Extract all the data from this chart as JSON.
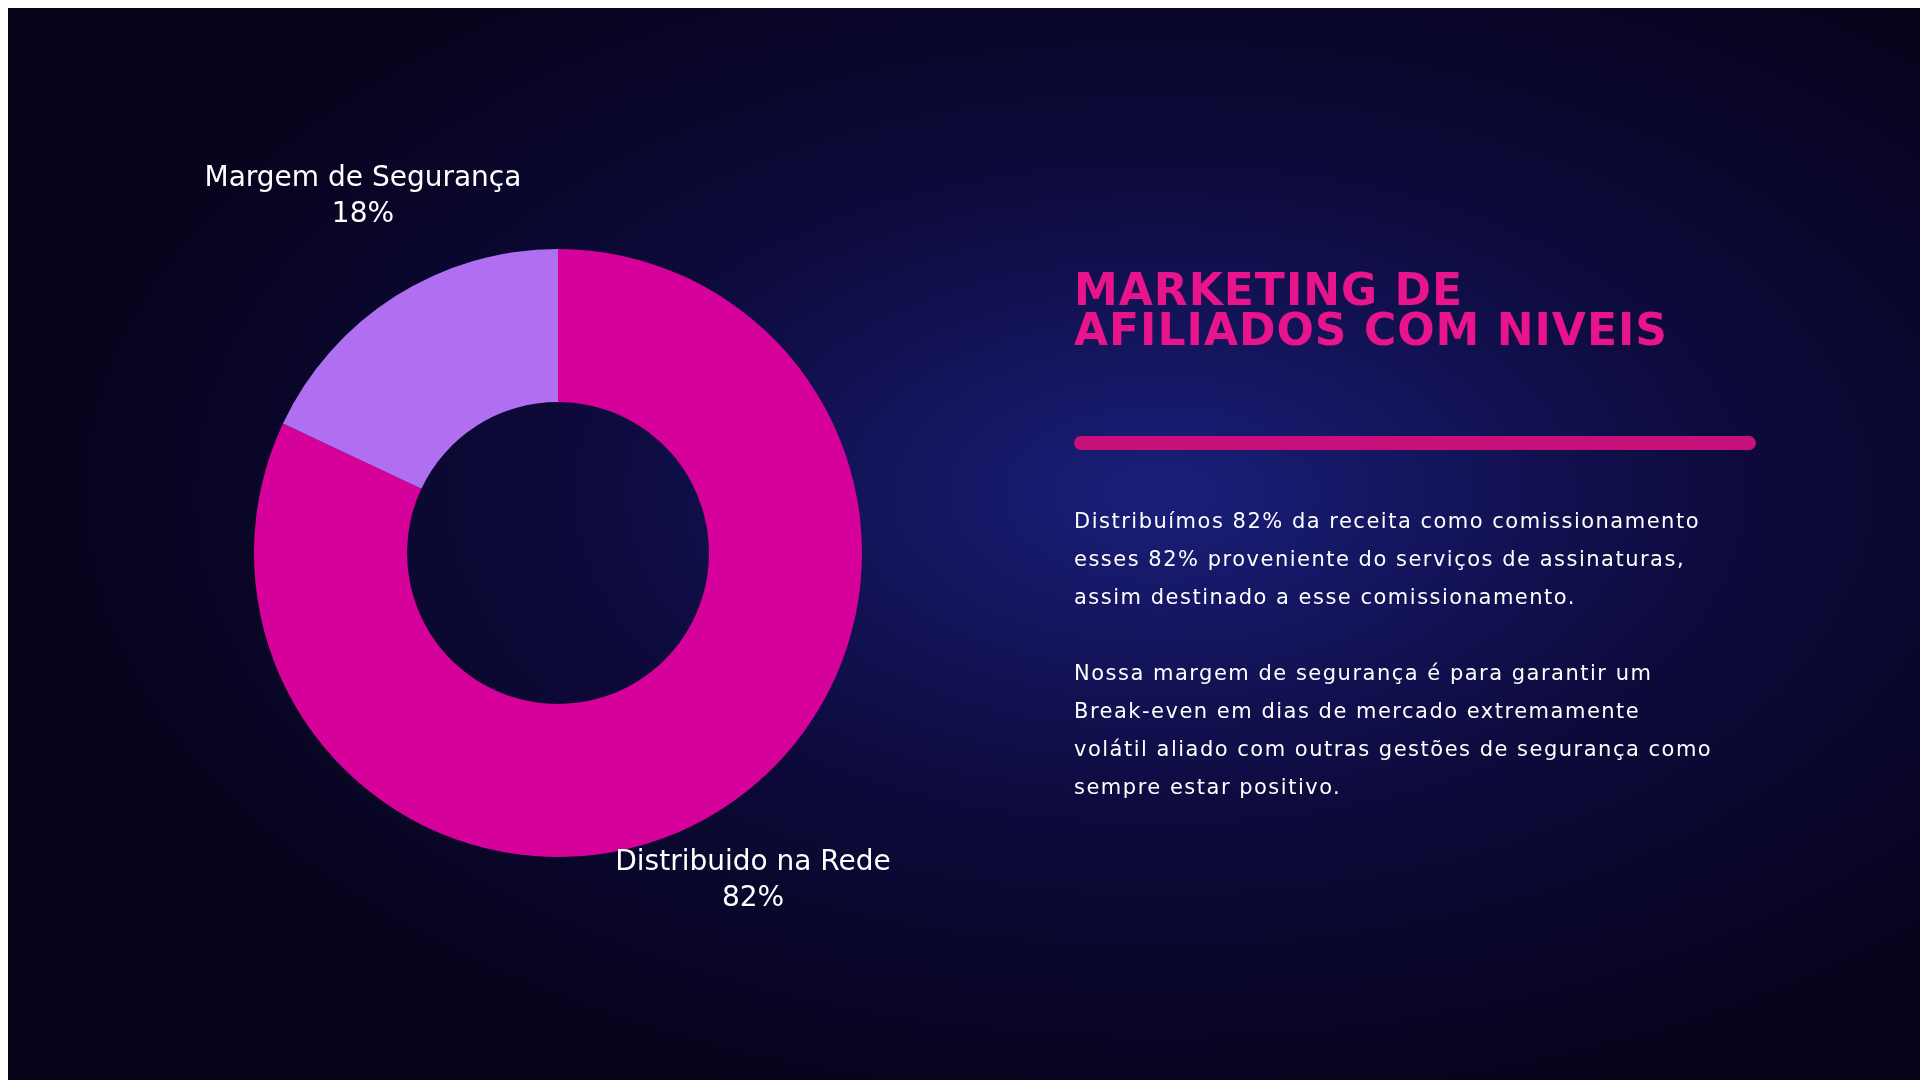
{
  "chart_data": {
    "type": "donut",
    "title": "MARKETING DE\nAFILIADOS COM NIVEIS",
    "categories": [
      "Distribuido na Rede",
      "Margem de Segurança"
    ],
    "values": [
      82,
      18
    ],
    "colors": [
      "#d6009a",
      "#b06ef0"
    ],
    "value_labels": [
      "82%",
      "18%"
    ],
    "annotations": [
      "Distribuímos 82% da receita como comissionamento\nesses 82% proveniente do serviços de assinaturas,\nassim destinado a esse comissionamento.",
      "Nossa margem de segurança é para garantir um\nBreak-even em dias de mercado extremamente\nvolátil aliado com outras gestões de segurança como\nsempre estar positivo."
    ]
  }
}
